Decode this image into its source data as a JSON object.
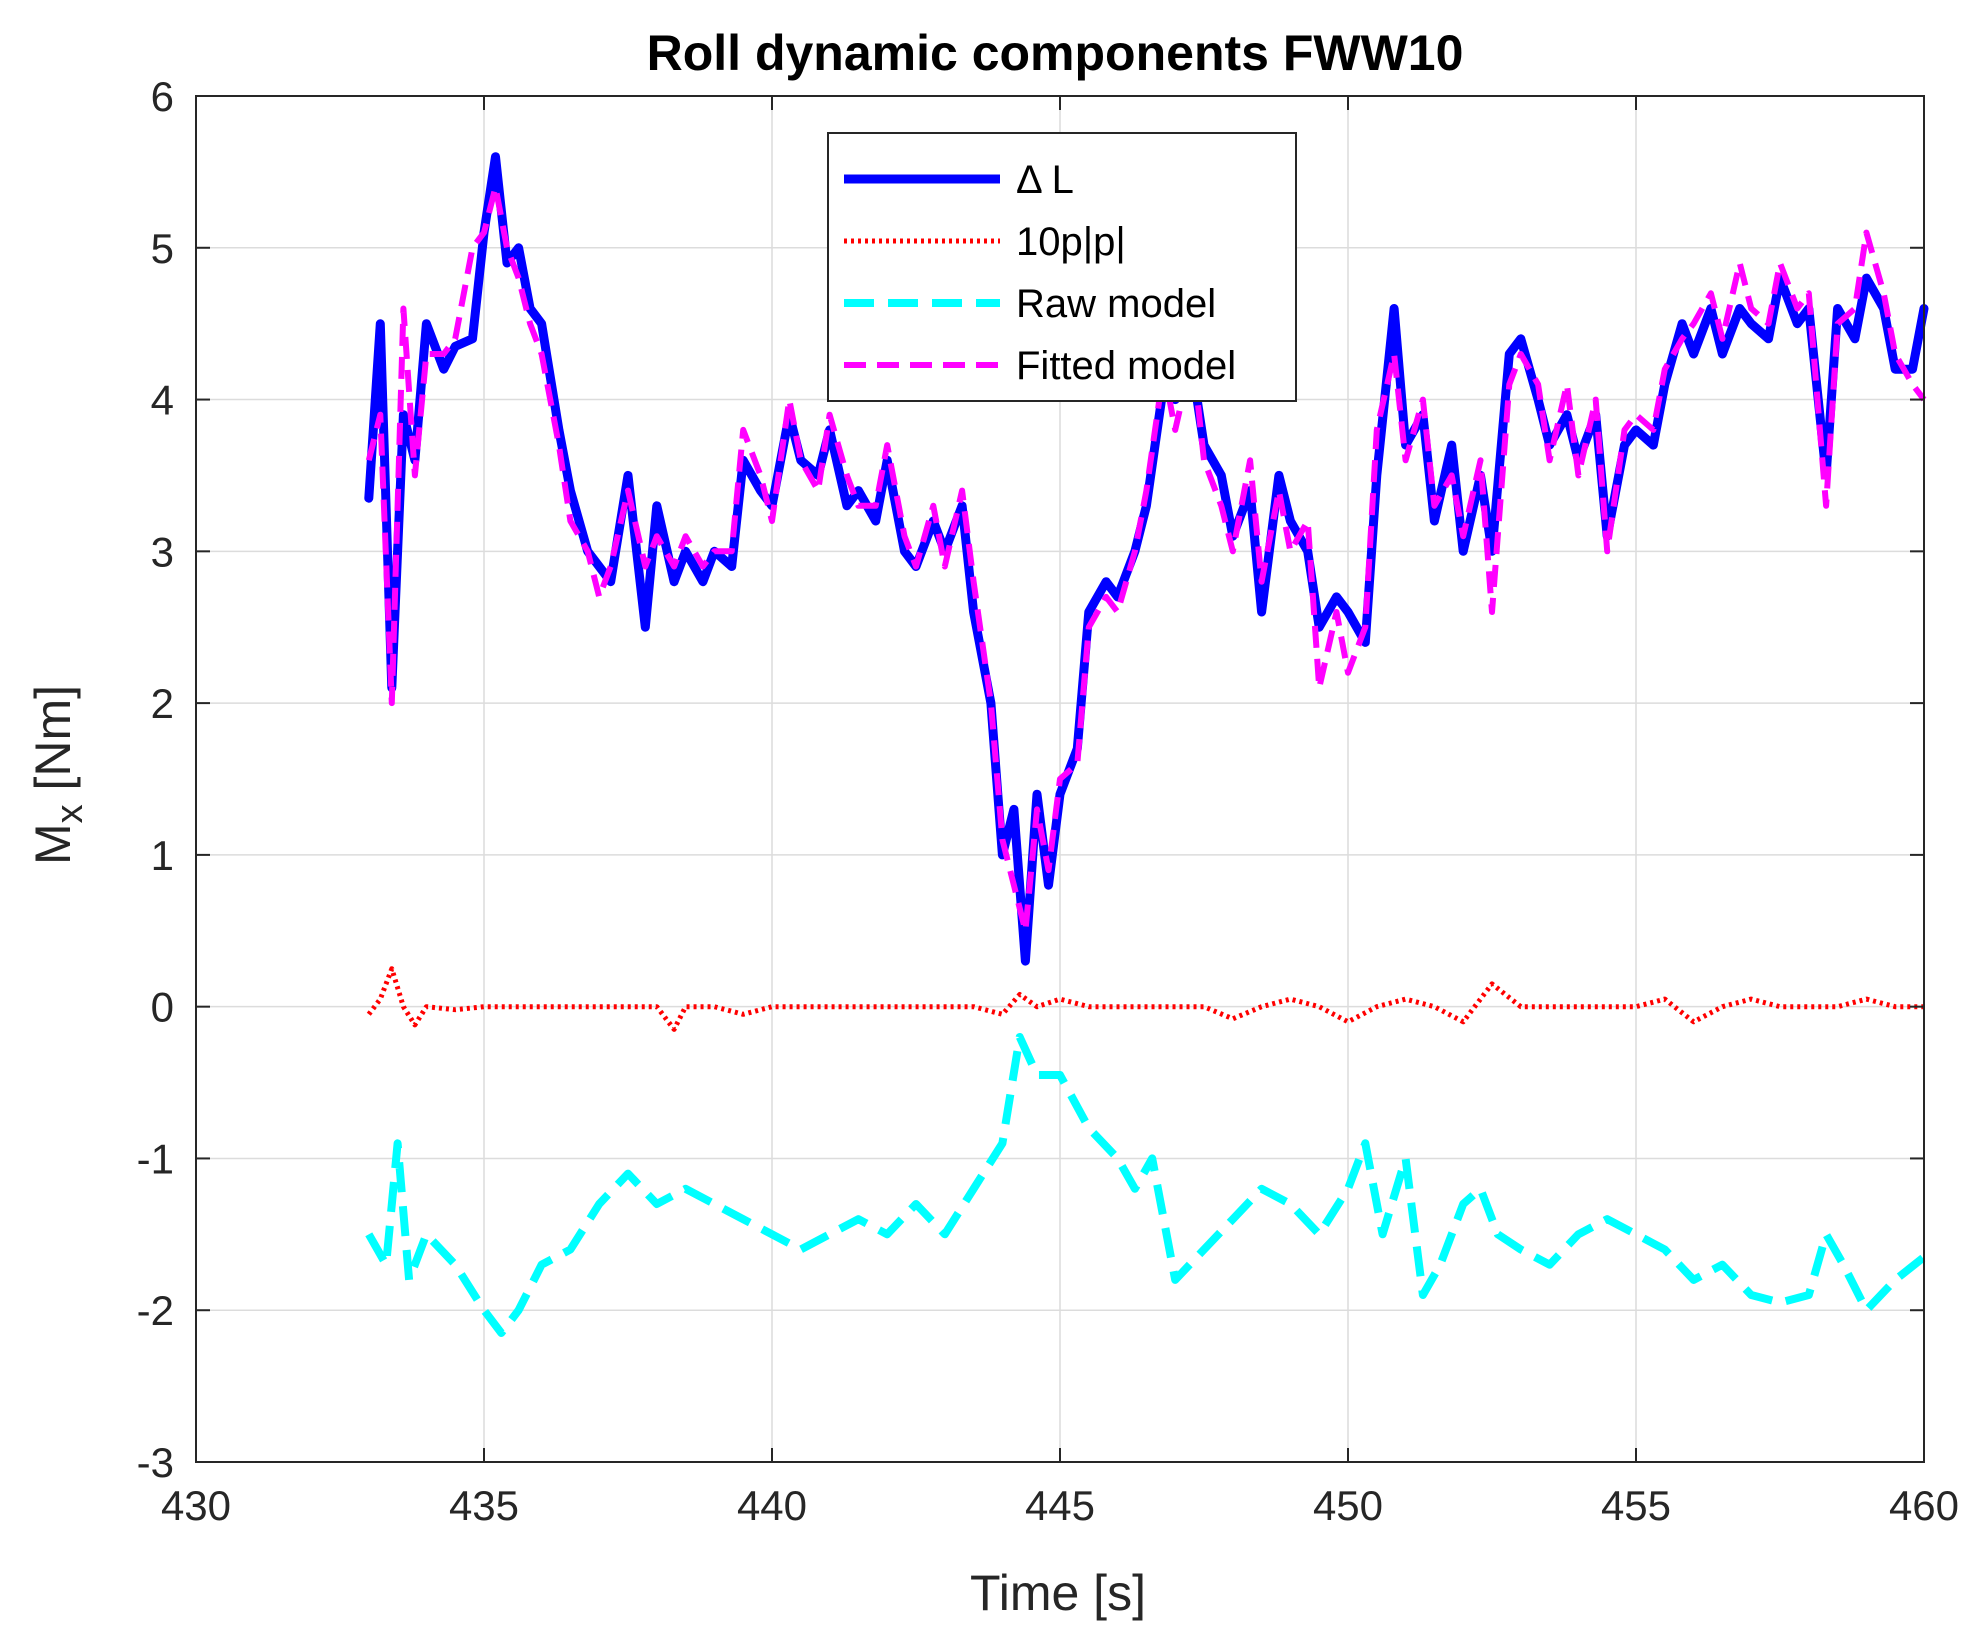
{
  "chart_data": {
    "type": "line",
    "title": "Roll dynamic components FWW10",
    "xlabel": "Time [s]",
    "ylabel_main": "M",
    "ylabel_sub": "x",
    "ylabel_unit": " [Nm]",
    "xlim": [
      430,
      460
    ],
    "ylim": [
      -3,
      6
    ],
    "xticks": [
      430,
      435,
      440,
      445,
      450,
      455,
      460
    ],
    "yticks": [
      -3,
      -2,
      -1,
      0,
      1,
      2,
      3,
      4,
      5,
      6
    ],
    "grid": true,
    "legend_position": "top-center",
    "series": [
      {
        "name": "Δ L",
        "color": "#0000ff",
        "style": "solid",
        "x": [
          433.0,
          433.2,
          433.4,
          433.6,
          433.8,
          434.0,
          434.3,
          434.5,
          434.8,
          435.0,
          435.2,
          435.4,
          435.6,
          435.8,
          436.0,
          436.3,
          436.5,
          436.8,
          437.0,
          437.2,
          437.5,
          437.8,
          438.0,
          438.3,
          438.5,
          438.8,
          439.0,
          439.3,
          439.5,
          439.8,
          440.0,
          440.3,
          440.5,
          440.8,
          441.0,
          441.3,
          441.5,
          441.8,
          442.0,
          442.3,
          442.5,
          442.8,
          443.0,
          443.3,
          443.5,
          443.8,
          444.0,
          444.2,
          444.4,
          444.6,
          444.8,
          445.0,
          445.3,
          445.5,
          445.8,
          446.0,
          446.3,
          446.5,
          446.8,
          447.0,
          447.3,
          447.5,
          447.8,
          448.0,
          448.3,
          448.5,
          448.8,
          449.0,
          449.3,
          449.5,
          449.8,
          450.0,
          450.3,
          450.5,
          450.8,
          451.0,
          451.3,
          451.5,
          451.8,
          452.0,
          452.3,
          452.5,
          452.8,
          453.0,
          453.3,
          453.5,
          453.8,
          454.0,
          454.3,
          454.5,
          454.8,
          455.0,
          455.3,
          455.5,
          455.8,
          456.0,
          456.3,
          456.5,
          456.8,
          457.0,
          457.3,
          457.5,
          457.8,
          458.0,
          458.3,
          458.5,
          458.8,
          459.0,
          459.3,
          459.5,
          459.8,
          460.0
        ],
        "y": [
          3.35,
          4.5,
          2.1,
          3.9,
          3.6,
          4.5,
          4.2,
          4.35,
          4.4,
          5.1,
          5.6,
          4.9,
          5.0,
          4.6,
          4.5,
          3.8,
          3.4,
          3.0,
          2.9,
          2.8,
          3.5,
          2.5,
          3.3,
          2.8,
          3.0,
          2.8,
          3.0,
          2.9,
          3.6,
          3.4,
          3.3,
          3.9,
          3.6,
          3.5,
          3.8,
          3.3,
          3.4,
          3.2,
          3.6,
          3.0,
          2.9,
          3.2,
          3.0,
          3.3,
          2.6,
          2.0,
          1.0,
          1.3,
          0.3,
          1.4,
          0.8,
          1.4,
          1.7,
          2.6,
          2.8,
          2.7,
          3.0,
          3.3,
          4.1,
          4.0,
          4.2,
          3.7,
          3.5,
          3.1,
          3.4,
          2.6,
          3.5,
          3.2,
          3.0,
          2.5,
          2.7,
          2.6,
          2.4,
          3.5,
          4.6,
          3.7,
          3.9,
          3.2,
          3.7,
          3.0,
          3.5,
          3.0,
          4.3,
          4.4,
          4.0,
          3.7,
          3.9,
          3.6,
          3.9,
          3.1,
          3.7,
          3.8,
          3.7,
          4.1,
          4.5,
          4.3,
          4.6,
          4.3,
          4.6,
          4.5,
          4.4,
          4.8,
          4.5,
          4.6,
          3.5,
          4.6,
          4.4,
          4.8,
          4.6,
          4.2,
          4.2,
          4.6
        ]
      },
      {
        "name": "10p|p|",
        "color": "#ff0000",
        "style": "dotted",
        "x": [
          433.0,
          433.2,
          433.4,
          433.6,
          433.8,
          434.0,
          434.5,
          435.0,
          435.5,
          436.0,
          436.5,
          437.0,
          437.5,
          438.0,
          438.3,
          438.5,
          439.0,
          439.5,
          440.0,
          440.5,
          441.0,
          441.5,
          442.0,
          442.5,
          443.0,
          443.5,
          444.0,
          444.3,
          444.6,
          445.0,
          445.5,
          446.0,
          446.5,
          447.0,
          447.5,
          448.0,
          448.5,
          449.0,
          449.5,
          450.0,
          450.5,
          451.0,
          451.5,
          452.0,
          452.5,
          453.0,
          453.5,
          454.0,
          454.5,
          455.0,
          455.5,
          456.0,
          456.5,
          457.0,
          457.5,
          458.0,
          458.5,
          459.0,
          459.5,
          460.0
        ],
        "y": [
          -0.05,
          0.05,
          0.25,
          0.0,
          -0.12,
          0.0,
          -0.02,
          0.0,
          0.0,
          0.0,
          0.0,
          0.0,
          0.0,
          0.0,
          -0.15,
          0.0,
          0.0,
          -0.05,
          0.0,
          0.0,
          0.0,
          0.0,
          0.0,
          0.0,
          0.0,
          0.0,
          -0.05,
          0.08,
          0.0,
          0.05,
          0.0,
          0.0,
          0.0,
          0.0,
          0.0,
          -0.08,
          0.0,
          0.05,
          0.0,
          -0.1,
          0.0,
          0.05,
          0.0,
          -0.1,
          0.15,
          0.0,
          0.0,
          0.0,
          0.0,
          0.0,
          0.05,
          -0.1,
          0.0,
          0.05,
          0.0,
          0.0,
          0.0,
          0.05,
          0.0,
          0.0
        ]
      },
      {
        "name": "Raw model",
        "color": "#00ffff",
        "style": "dashed",
        "x": [
          433.0,
          433.3,
          433.5,
          433.7,
          434.0,
          434.5,
          435.0,
          435.3,
          435.6,
          436.0,
          436.5,
          437.0,
          437.5,
          438.0,
          438.5,
          439.0,
          439.5,
          440.0,
          440.5,
          441.0,
          441.5,
          442.0,
          442.5,
          443.0,
          443.5,
          444.0,
          444.3,
          444.6,
          445.0,
          445.5,
          446.0,
          446.3,
          446.6,
          447.0,
          447.5,
          448.0,
          448.5,
          449.0,
          449.5,
          450.0,
          450.3,
          450.6,
          451.0,
          451.3,
          451.6,
          452.0,
          452.3,
          452.6,
          453.0,
          453.5,
          454.0,
          454.5,
          455.0,
          455.5,
          456.0,
          456.5,
          457.0,
          457.5,
          458.0,
          458.3,
          458.6,
          459.0,
          459.5,
          460.0
        ],
        "y": [
          -1.5,
          -1.7,
          -0.9,
          -1.8,
          -1.5,
          -1.7,
          -2.0,
          -2.15,
          -2.0,
          -1.7,
          -1.6,
          -1.3,
          -1.1,
          -1.3,
          -1.2,
          -1.3,
          -1.4,
          -1.5,
          -1.6,
          -1.5,
          -1.4,
          -1.5,
          -1.3,
          -1.5,
          -1.2,
          -0.9,
          -0.2,
          -0.45,
          -0.45,
          -0.8,
          -1.0,
          -1.2,
          -1.0,
          -1.8,
          -1.6,
          -1.4,
          -1.2,
          -1.3,
          -1.5,
          -1.2,
          -0.9,
          -1.5,
          -1.0,
          -1.9,
          -1.7,
          -1.3,
          -1.2,
          -1.5,
          -1.6,
          -1.7,
          -1.5,
          -1.4,
          -1.5,
          -1.6,
          -1.8,
          -1.7,
          -1.9,
          -1.95,
          -1.9,
          -1.5,
          -1.7,
          -2.0,
          -1.8,
          -1.65
        ]
      },
      {
        "name": "Fitted model",
        "color": "#ff00ff",
        "style": "dashed",
        "x": [
          433.0,
          433.2,
          433.4,
          433.6,
          433.8,
          434.0,
          434.3,
          434.5,
          434.8,
          435.0,
          435.2,
          435.4,
          435.6,
          435.8,
          436.0,
          436.3,
          436.5,
          436.8,
          437.0,
          437.2,
          437.5,
          437.8,
          438.0,
          438.3,
          438.5,
          438.8,
          439.0,
          439.3,
          439.5,
          439.8,
          440.0,
          440.3,
          440.5,
          440.8,
          441.0,
          441.3,
          441.5,
          441.8,
          442.0,
          442.3,
          442.5,
          442.8,
          443.0,
          443.3,
          443.5,
          443.8,
          444.0,
          444.2,
          444.4,
          444.6,
          444.8,
          445.0,
          445.3,
          445.5,
          445.8,
          446.0,
          446.3,
          446.5,
          446.8,
          447.0,
          447.3,
          447.5,
          447.8,
          448.0,
          448.3,
          448.5,
          448.8,
          449.0,
          449.3,
          449.5,
          449.8,
          450.0,
          450.3,
          450.5,
          450.8,
          451.0,
          451.3,
          451.5,
          451.8,
          452.0,
          452.3,
          452.5,
          452.8,
          453.0,
          453.3,
          453.5,
          453.8,
          454.0,
          454.3,
          454.5,
          454.8,
          455.0,
          455.3,
          455.5,
          455.8,
          456.0,
          456.3,
          456.5,
          456.8,
          457.0,
          457.3,
          457.5,
          457.8,
          458.0,
          458.3,
          458.5,
          458.8,
          459.0,
          459.3,
          459.5,
          459.8,
          460.0
        ],
        "y": [
          3.6,
          3.9,
          2.0,
          4.6,
          3.5,
          4.3,
          4.3,
          4.4,
          5.0,
          5.1,
          5.4,
          5.0,
          4.8,
          4.5,
          4.3,
          3.7,
          3.2,
          3.0,
          2.7,
          2.9,
          3.4,
          2.9,
          3.1,
          2.9,
          3.1,
          2.9,
          3.0,
          3.0,
          3.8,
          3.5,
          3.2,
          4.0,
          3.6,
          3.4,
          3.9,
          3.5,
          3.3,
          3.3,
          3.7,
          3.1,
          2.9,
          3.3,
          2.9,
          3.4,
          2.8,
          2.0,
          1.1,
          0.8,
          0.5,
          1.3,
          0.9,
          1.5,
          1.6,
          2.5,
          2.7,
          2.6,
          3.0,
          3.4,
          4.2,
          3.8,
          4.3,
          3.6,
          3.3,
          3.0,
          3.6,
          2.8,
          3.4,
          3.0,
          3.2,
          2.1,
          2.6,
          2.2,
          2.5,
          3.8,
          4.3,
          3.6,
          4.0,
          3.3,
          3.5,
          3.1,
          3.6,
          2.6,
          4.1,
          4.3,
          4.1,
          3.6,
          4.1,
          3.5,
          4.0,
          3.0,
          3.8,
          3.9,
          3.8,
          4.2,
          4.4,
          4.5,
          4.7,
          4.4,
          4.9,
          4.6,
          4.5,
          4.9,
          4.6,
          4.7,
          3.3,
          4.5,
          4.6,
          5.1,
          4.7,
          4.3,
          4.1,
          4.0
        ]
      }
    ]
  }
}
